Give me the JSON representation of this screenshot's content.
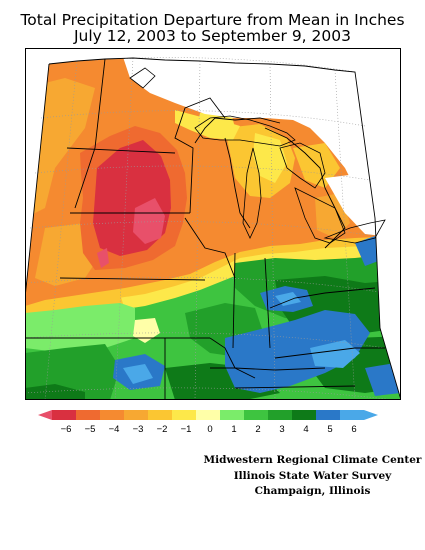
{
  "header": {
    "title_line1": "Total Precipitation Departure from Mean in Inches",
    "title_line2": "July 12, 2003 to September 9, 2003"
  },
  "legend": {
    "bins": [
      {
        "color": "#d93040",
        "label": "−6"
      },
      {
        "color": "#ef6a30",
        "label": "−5"
      },
      {
        "color": "#f58a30",
        "label": "−4"
      },
      {
        "color": "#f7a832",
        "label": "−3"
      },
      {
        "color": "#fbc632",
        "label": "−2"
      },
      {
        "color": "#fde84a",
        "label": "−1"
      },
      {
        "color": "#ffffa8",
        "label": "0"
      },
      {
        "color": "#7bec6a",
        "label": "1"
      },
      {
        "color": "#3ec440",
        "label": "2"
      },
      {
        "color": "#22a02a",
        "label": "3"
      },
      {
        "color": "#0e7a18",
        "label": "4"
      },
      {
        "color": "#2a78c8",
        "label": "5"
      },
      {
        "color": "#4aa8e8",
        "label": "6"
      }
    ],
    "low_end_color": "#e8506a",
    "high_end_color": "#4aa8e8"
  },
  "credits": {
    "line1": "Midwestern Regional Climate Center",
    "line2": "Illinois State Water Survey",
    "line3": "Champaign, Illinois"
  }
}
